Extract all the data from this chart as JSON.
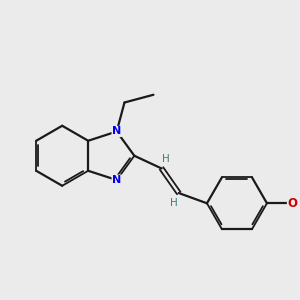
{
  "background_color": "#ebebeb",
  "bond_color": "#1a1a1a",
  "N_color": "#0000ee",
  "O_color": "#cc0000",
  "H_color": "#3a8080",
  "figsize": [
    3.0,
    3.0
  ],
  "dpi": 100,
  "xlim": [
    -2.3,
    2.7
  ],
  "ylim": [
    -1.8,
    2.0
  ]
}
